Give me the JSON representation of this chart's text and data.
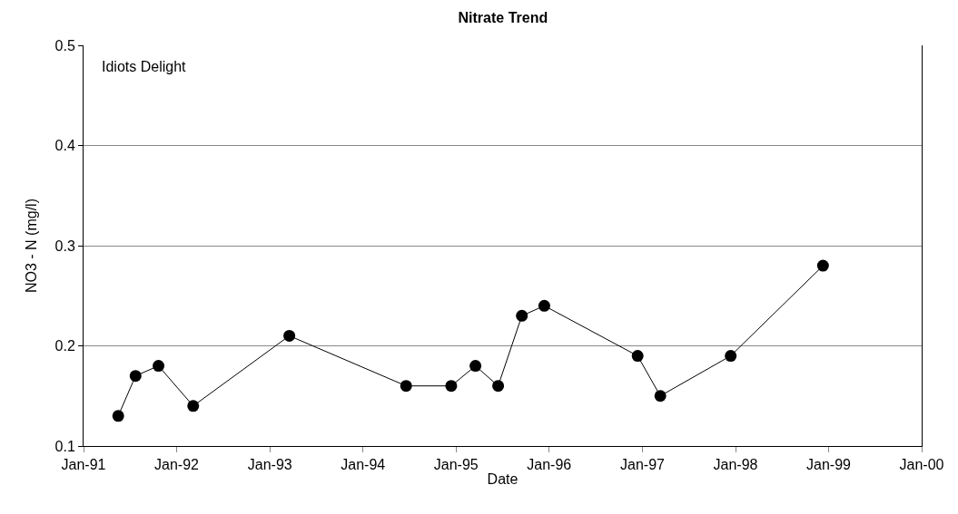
{
  "chart_data": {
    "type": "line",
    "title": "Nitrate Trend",
    "xlabel": "Date",
    "ylabel": "NO3 - N (mg/l)",
    "annotations": [
      "Idiots Delight"
    ],
    "x": [
      "1991-05-17",
      "1991-07-24",
      "1991-10-22",
      "1992-03-06",
      "1993-03-18",
      "1994-06-19",
      "1994-12-13",
      "1995-03-18",
      "1995-06-15",
      "1995-09-16",
      "1995-12-13",
      "1996-12-13",
      "1997-03-12",
      "1997-12-13",
      "1998-12-10"
    ],
    "series": [
      {
        "color": "#000000",
        "values": [
          0.13,
          0.17,
          0.18,
          0.14,
          0.21,
          0.16,
          0.16,
          0.18,
          0.16,
          0.23,
          0.24,
          0.19,
          0.15,
          0.19,
          0.28
        ]
      }
    ],
    "xlim": [
      "1991-01-01",
      "2000-01-01"
    ],
    "xticks": [
      {
        "value": "1991-01-01",
        "label": "Jan-91"
      },
      {
        "value": "1992-01-01",
        "label": "Jan-92"
      },
      {
        "value": "1993-01-01",
        "label": "Jan-93"
      },
      {
        "value": "1994-01-01",
        "label": "Jan-94"
      },
      {
        "value": "1995-01-01",
        "label": "Jan-95"
      },
      {
        "value": "1996-01-01",
        "label": "Jan-96"
      },
      {
        "value": "1997-01-01",
        "label": "Jan-97"
      },
      {
        "value": "1998-01-01",
        "label": "Jan-98"
      },
      {
        "value": "1999-01-01",
        "label": "Jan-99"
      },
      {
        "value": "2000-01-01",
        "label": "Jan-00"
      }
    ],
    "ylim": [
      0.1,
      0.5
    ],
    "yticks": [
      0.1,
      0.2,
      0.3,
      0.4,
      0.5
    ],
    "grid": "y",
    "marker": "circle",
    "line_style": "solid"
  }
}
